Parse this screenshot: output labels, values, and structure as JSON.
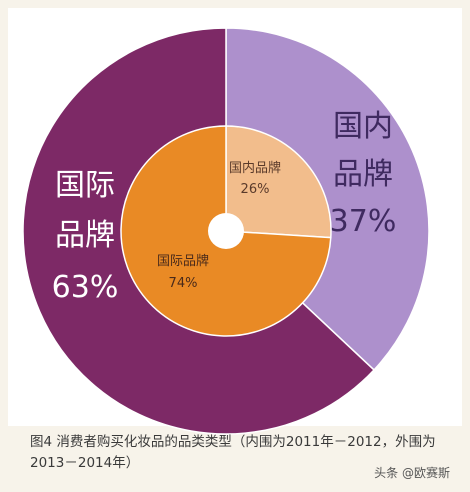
{
  "chart_data": {
    "type": "pie",
    "style": "nested-donut",
    "outer_ring": {
      "label": "外围为2013－2014年",
      "slices": [
        {
          "name": "国内品牌",
          "value": 37,
          "display": "37%",
          "color": "#ad90cc"
        },
        {
          "name": "国际品牌",
          "value": 63,
          "display": "63%",
          "color": "#7d2966"
        }
      ]
    },
    "inner_ring": {
      "label": "内围为2011年－2012",
      "slices": [
        {
          "name": "国内品牌",
          "value": 26,
          "display": "26%",
          "color": "#f2bd8c"
        },
        {
          "name": "国际品牌",
          "value": 74,
          "display": "74%",
          "color": "#e98a25"
        }
      ]
    },
    "center_hole_color": "#ffffff"
  },
  "caption": "图4  消费者购买化妆品的品类类型（内围为2011年－2012，外围为2013－2014年）",
  "watermark": "头条 @欧赛斯"
}
